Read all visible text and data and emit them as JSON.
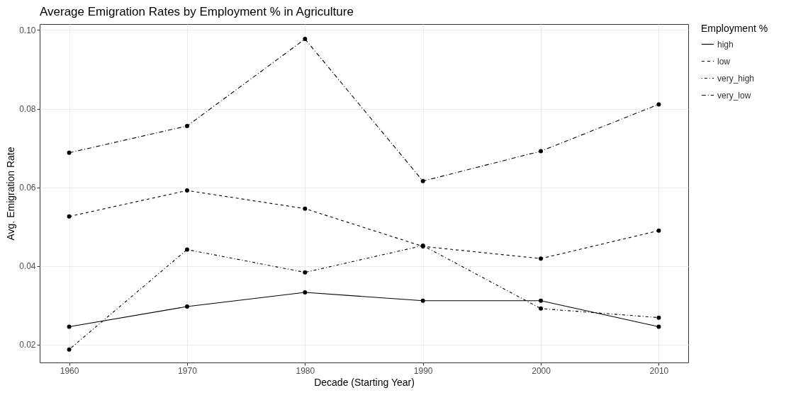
{
  "chart_data": {
    "type": "line",
    "title": "Average Emigration Rates by Employment % in Agriculture",
    "xlabel": "Decade (Starting Year)",
    "ylabel": "Avg. Emigration Rate",
    "legend_title": "Employment %",
    "x": [
      1960,
      1970,
      1980,
      1990,
      2000,
      2010
    ],
    "series": [
      {
        "name": "high",
        "color": "#000000",
        "line_style": "solid",
        "values": [
          0.0246,
          0.0297,
          0.0333,
          0.0312,
          0.0312,
          0.0246
        ]
      },
      {
        "name": "low",
        "color": "#000000",
        "line_style": "dashed",
        "values": [
          0.0526,
          0.0592,
          0.0546,
          0.045,
          0.0419,
          0.049
        ]
      },
      {
        "name": "very_high",
        "color": "#000000",
        "line_style": "dashdot",
        "values": [
          0.0188,
          0.0442,
          0.0384,
          0.0452,
          0.0292,
          0.0269
        ]
      },
      {
        "name": "very_low",
        "color": "#000000",
        "line_style": "longdashdot",
        "values": [
          0.0688,
          0.0756,
          0.0977,
          0.0616,
          0.0692,
          0.0811
        ]
      }
    ],
    "xlim": [
      1957.5,
      2012.5
    ],
    "xticks": [
      1960,
      1970,
      1980,
      1990,
      2000,
      2010
    ],
    "ylim": [
      0.0155,
      0.1015
    ],
    "yticks": [
      {
        "value": 0.02,
        "label": "0.02"
      },
      {
        "value": 0.04,
        "label": "0.04"
      },
      {
        "value": 0.06,
        "label": "0.06"
      },
      {
        "value": 0.08,
        "label": "0.08"
      },
      {
        "value": 0.1,
        "label": "0.10"
      }
    ],
    "grid": true,
    "legend": "right",
    "marker": "circle"
  }
}
